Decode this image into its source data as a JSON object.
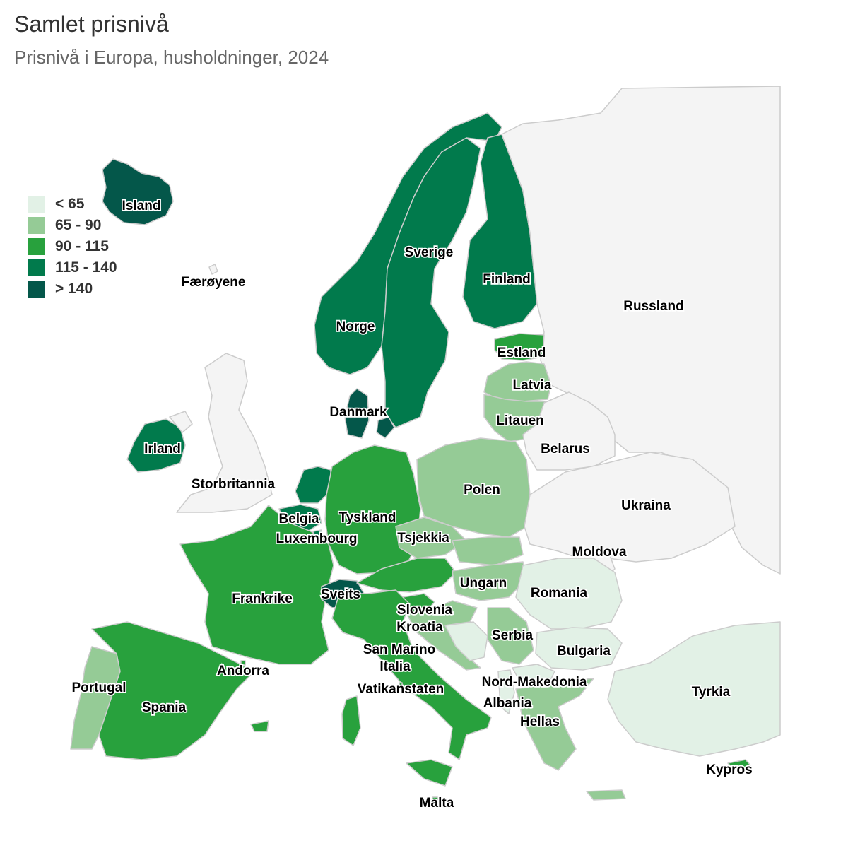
{
  "title": "Samlet prisnivå",
  "subtitle": "Prisnivå i Europa, husholdninger, 2024",
  "colors": {
    "c1": "#e2f1e6",
    "c2": "#95cb96",
    "c3": "#28a13d",
    "c4": "#017a4c",
    "c5": "#04574a",
    "nodata": "#f4f4f4",
    "border": "#cccccc"
  },
  "legend": [
    {
      "label": "< 65",
      "color_key": "c1"
    },
    {
      "label": "65 - 90",
      "color_key": "c2"
    },
    {
      "label": "90 - 115",
      "color_key": "c3"
    },
    {
      "label": "115 - 140",
      "color_key": "c4"
    },
    {
      "label": "> 140",
      "color_key": "c5"
    }
  ],
  "countries": [
    {
      "id": "island",
      "label": "Island",
      "class": "c5"
    },
    {
      "id": "faroyene",
      "label": "Færøyene",
      "class": "nodata"
    },
    {
      "id": "norge",
      "label": "Norge",
      "class": "c4"
    },
    {
      "id": "sverige",
      "label": "Sverige",
      "class": "c4"
    },
    {
      "id": "finland",
      "label": "Finland",
      "class": "c4"
    },
    {
      "id": "russland",
      "label": "Russland",
      "class": "nodata"
    },
    {
      "id": "estland",
      "label": "Estland",
      "class": "c3"
    },
    {
      "id": "latvia",
      "label": "Latvia",
      "class": "c2"
    },
    {
      "id": "litauen",
      "label": "Litauen",
      "class": "c2"
    },
    {
      "id": "belarus",
      "label": "Belarus",
      "class": "nodata"
    },
    {
      "id": "danmark",
      "label": "Danmark",
      "class": "c5"
    },
    {
      "id": "irland",
      "label": "Irland",
      "class": "c4"
    },
    {
      "id": "storbritannia",
      "label": "Storbritannia",
      "class": "nodata"
    },
    {
      "id": "nederland",
      "label": "",
      "class": "c4"
    },
    {
      "id": "belgia",
      "label": "Belgia",
      "class": "c4"
    },
    {
      "id": "luxembourg",
      "label": "Luxembourg",
      "class": "c4"
    },
    {
      "id": "tyskland",
      "label": "Tyskland",
      "class": "c3"
    },
    {
      "id": "polen",
      "label": "Polen",
      "class": "c2"
    },
    {
      "id": "tsjekkia",
      "label": "Tsjekkia",
      "class": "c2"
    },
    {
      "id": "ukraina",
      "label": "Ukraina",
      "class": "nodata"
    },
    {
      "id": "moldova",
      "label": "Moldova",
      "class": "nodata"
    },
    {
      "id": "frankrike",
      "label": "Frankrike",
      "class": "c3"
    },
    {
      "id": "sveits",
      "label": "Sveits",
      "class": "c5"
    },
    {
      "id": "osterrike",
      "label": "",
      "class": "c3"
    },
    {
      "id": "slovakia",
      "label": "",
      "class": "c2"
    },
    {
      "id": "ungarn",
      "label": "Ungarn",
      "class": "c2"
    },
    {
      "id": "romania",
      "label": "Romania",
      "class": "c1"
    },
    {
      "id": "slovenia",
      "label": "Slovenia",
      "class": "c3"
    },
    {
      "id": "kroatia",
      "label": "Kroatia",
      "class": "c2"
    },
    {
      "id": "bosnia",
      "label": "",
      "class": "c1"
    },
    {
      "id": "serbia",
      "label": "Serbia",
      "class": "c2"
    },
    {
      "id": "bulgaria",
      "label": "Bulgaria",
      "class": "c1"
    },
    {
      "id": "san-marino",
      "label": "San Marino",
      "class": "c3"
    },
    {
      "id": "italia",
      "label": "Italia",
      "class": "c3"
    },
    {
      "id": "andorra",
      "label": "Andorra",
      "class": "c3"
    },
    {
      "id": "portugal",
      "label": "Portugal",
      "class": "c2"
    },
    {
      "id": "spania",
      "label": "Spania",
      "class": "c3"
    },
    {
      "id": "vatikanstaten",
      "label": "Vatikanstaten",
      "class": "c3"
    },
    {
      "id": "nord-makedonia",
      "label": "Nord-Makedonia",
      "class": "c1"
    },
    {
      "id": "albania",
      "label": "Albania",
      "class": "c1"
    },
    {
      "id": "hellas",
      "label": "Hellas",
      "class": "c2"
    },
    {
      "id": "tyrkia",
      "label": "Tyrkia",
      "class": "c1"
    },
    {
      "id": "kypros",
      "label": "Kypros",
      "class": "c3"
    },
    {
      "id": "malta",
      "label": "Malta",
      "class": "c3"
    }
  ]
}
